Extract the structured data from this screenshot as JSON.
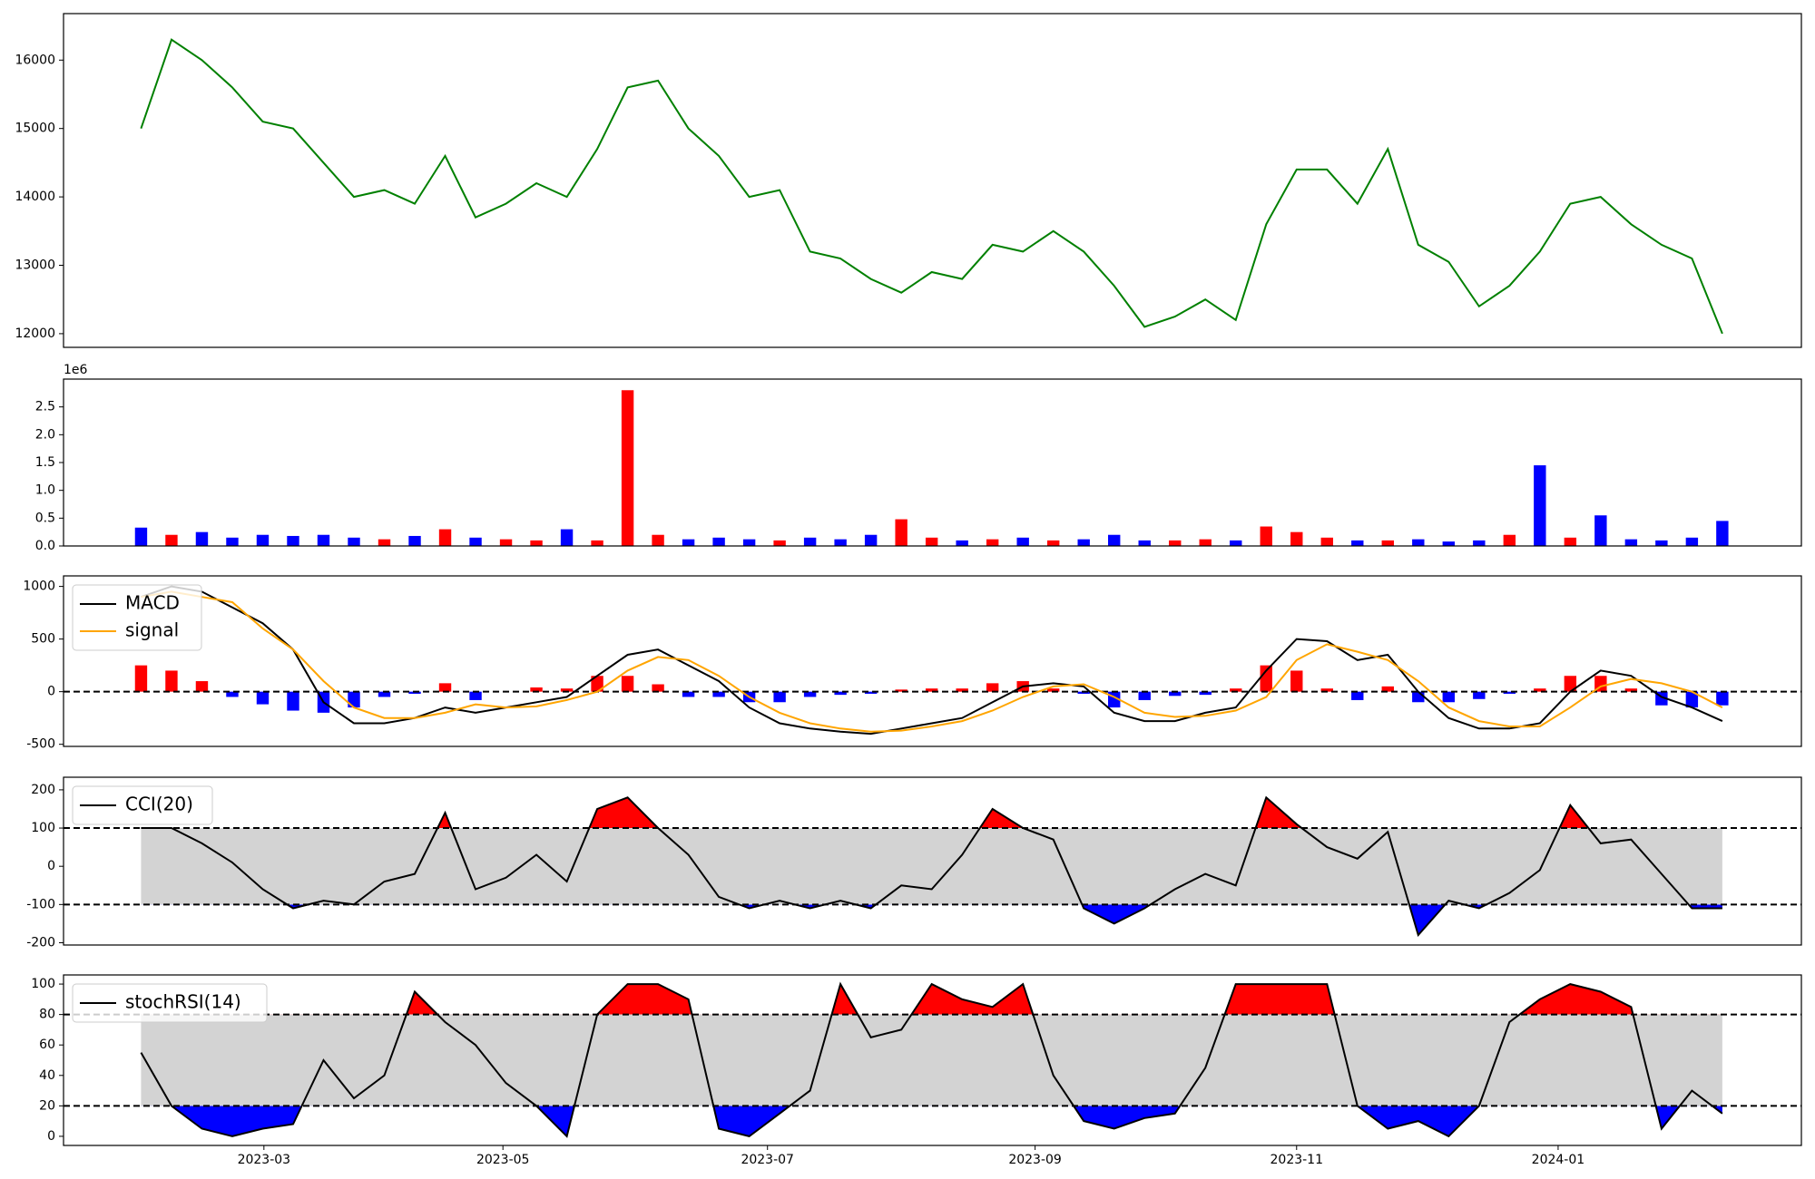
{
  "chart_data": [
    {
      "type": "line",
      "series": [
        {
          "color": "#008000",
          "values": [
            15000,
            16300,
            16000,
            15600,
            15100,
            15000,
            14500,
            14000,
            14100,
            13900,
            14600,
            13700,
            13900,
            14200,
            14000,
            14700,
            15600,
            15700,
            15000,
            14600,
            14000,
            14100,
            13200,
            13100,
            12800,
            12600,
            12900,
            12800,
            13300,
            13200,
            13500,
            13200,
            12700,
            12100,
            12250,
            12500,
            12200,
            13600,
            14400,
            14400,
            13900,
            14700,
            13300,
            13050,
            12400,
            12700,
            13200,
            13900,
            14000,
            13600,
            13300,
            13100,
            12000
          ]
        }
      ],
      "ylim": [
        11800,
        16680
      ],
      "yticks": [
        12000,
        13000,
        14000,
        15000,
        16000
      ]
    },
    {
      "type": "bar",
      "values": [
        0.33,
        0.2,
        0.25,
        0.15,
        0.2,
        0.18,
        0.2,
        0.15,
        0.12,
        0.18,
        0.3,
        0.15,
        0.12,
        0.1,
        0.3,
        0.1,
        2.8,
        0.2,
        0.12,
        0.15,
        0.12,
        0.1,
        0.15,
        0.12,
        0.2,
        0.48,
        0.15,
        0.1,
        0.12,
        0.15,
        0.1,
        0.12,
        0.2,
        0.1,
        0.1,
        0.12,
        0.1,
        0.35,
        0.25,
        0.15,
        0.1,
        0.1,
        0.12,
        0.08,
        0.1,
        0.2,
        1.45,
        0.15,
        0.55,
        0.12,
        0.1,
        0.15,
        0.45
      ],
      "colors": [
        "blue",
        "red",
        "blue",
        "blue",
        "blue",
        "blue",
        "blue",
        "blue",
        "red",
        "blue",
        "red",
        "blue",
        "red",
        "red",
        "blue",
        "red",
        "red",
        "red",
        "blue",
        "blue",
        "blue",
        "red",
        "blue",
        "blue",
        "blue",
        "red",
        "red",
        "blue",
        "red",
        "blue",
        "red",
        "blue",
        "blue",
        "blue",
        "red",
        "red",
        "blue",
        "red",
        "red",
        "red",
        "blue",
        "red",
        "blue",
        "blue",
        "blue",
        "red",
        "blue",
        "red",
        "blue",
        "blue",
        "blue",
        "blue",
        "blue"
      ],
      "y_offset_text": "1e6",
      "ylim": [
        0,
        3.0
      ],
      "yticks": [
        {
          "value": 0,
          "label": "0.0"
        },
        0.5,
        {
          "value": 1,
          "label": "1.0"
        },
        1.5,
        {
          "value": 2,
          "label": "2.0"
        },
        2.5
      ]
    },
    {
      "type": "line",
      "series": [
        {
          "name": "MACD",
          "color": "#000000",
          "values": [
            900,
            1000,
            950,
            800,
            650,
            400,
            -100,
            -300,
            -300,
            -250,
            -150,
            -200,
            -150,
            -100,
            -50,
            150,
            350,
            400,
            250,
            100,
            -150,
            -300,
            -350,
            -380,
            -400,
            -350,
            -300,
            -250,
            -100,
            50,
            80,
            50,
            -200,
            -280,
            -280,
            -200,
            -150,
            200,
            500,
            480,
            300,
            350,
            0,
            -250,
            -350,
            -350,
            -300,
            0,
            200,
            150,
            -50,
            -150,
            -280
          ]
        },
        {
          "name": "signal",
          "color": "#ffa500",
          "values": [
            900,
            950,
            900,
            850,
            600,
            400,
            100,
            -150,
            -250,
            -250,
            -200,
            -120,
            -150,
            -140,
            -80,
            0,
            200,
            330,
            300,
            150,
            -50,
            -200,
            -300,
            -350,
            -380,
            -370,
            -330,
            -280,
            -180,
            -50,
            50,
            70,
            -50,
            -200,
            -240,
            -230,
            -180,
            -50,
            300,
            450,
            380,
            300,
            100,
            -150,
            -280,
            -330,
            -330,
            -150,
            50,
            120,
            80,
            0,
            -150
          ]
        }
      ],
      "histogram": {
        "values": [
          250,
          200,
          100,
          -50,
          -120,
          -180,
          -200,
          -150,
          -50,
          -20,
          80,
          -80,
          0,
          40,
          30,
          150,
          150,
          70,
          -50,
          -50,
          -100,
          -100,
          -50,
          -30,
          -20,
          20,
          30,
          30,
          80,
          100,
          30,
          -20,
          -150,
          -80,
          -40,
          -30,
          30,
          250,
          200,
          30,
          -80,
          50,
          -100,
          -100,
          -70,
          -20,
          30,
          150,
          150,
          30,
          -130,
          -150,
          -130
        ],
        "pos_color": "red",
        "neg_color": "blue"
      },
      "hline": 0,
      "legend": "upper left",
      "ylim": [
        -520,
        1100
      ],
      "yticks": [
        -500,
        0,
        500,
        1000
      ]
    },
    {
      "type": "line",
      "series": [
        {
          "name": "CCI(20)",
          "color": "#000000",
          "values": [
            100,
            100,
            60,
            10,
            -60,
            -110,
            -90,
            -100,
            -40,
            -20,
            140,
            -60,
            -30,
            30,
            -40,
            150,
            180,
            100,
            30,
            -80,
            -110,
            -90,
            -110,
            -90,
            -110,
            -50,
            -60,
            30,
            150,
            100,
            70,
            -110,
            -150,
            -110,
            -60,
            -20,
            -50,
            180,
            110,
            50,
            20,
            90,
            -180,
            -90,
            -110,
            -70,
            -10,
            160,
            60,
            70,
            -20,
            -110,
            -110
          ]
        }
      ],
      "thresholds": [
        -100,
        100
      ],
      "band_color": "#d3d3d3",
      "above_color": "red",
      "below_color": "blue",
      "legend": "upper left",
      "ylim": [
        -206,
        233
      ],
      "yticks": [
        -200,
        -100,
        0,
        100,
        200
      ]
    },
    {
      "type": "line",
      "series": [
        {
          "name": "stochRSI(14)",
          "color": "#000000",
          "values": [
            55,
            20,
            5,
            0,
            5,
            8,
            50,
            25,
            40,
            95,
            75,
            60,
            35,
            20,
            0,
            80,
            100,
            100,
            90,
            5,
            0,
            15,
            30,
            100,
            65,
            70,
            100,
            90,
            85,
            100,
            40,
            10,
            5,
            12,
            15,
            45,
            100,
            100,
            100,
            100,
            20,
            5,
            10,
            0,
            20,
            75,
            90,
            100,
            95,
            85,
            5,
            30,
            15
          ]
        }
      ],
      "thresholds": [
        20,
        80
      ],
      "band_color": "#d3d3d3",
      "above_color": "red",
      "below_color": "blue",
      "legend": "upper left",
      "ylim": [
        -6,
        106
      ],
      "yticks": [
        0,
        20,
        40,
        60,
        80,
        100
      ],
      "xlim": [
        -2.55,
        54.6
      ],
      "xticks": [
        {
          "value": 4.04,
          "label": "2023-03"
        },
        {
          "value": 11.9,
          "label": "2023-05"
        },
        {
          "value": 20.6,
          "label": "2023-07"
        },
        {
          "value": 29.4,
          "label": "2023-09"
        },
        {
          "value": 38.0,
          "label": "2023-11"
        },
        {
          "value": 46.6,
          "label": "2024-01"
        }
      ]
    }
  ]
}
